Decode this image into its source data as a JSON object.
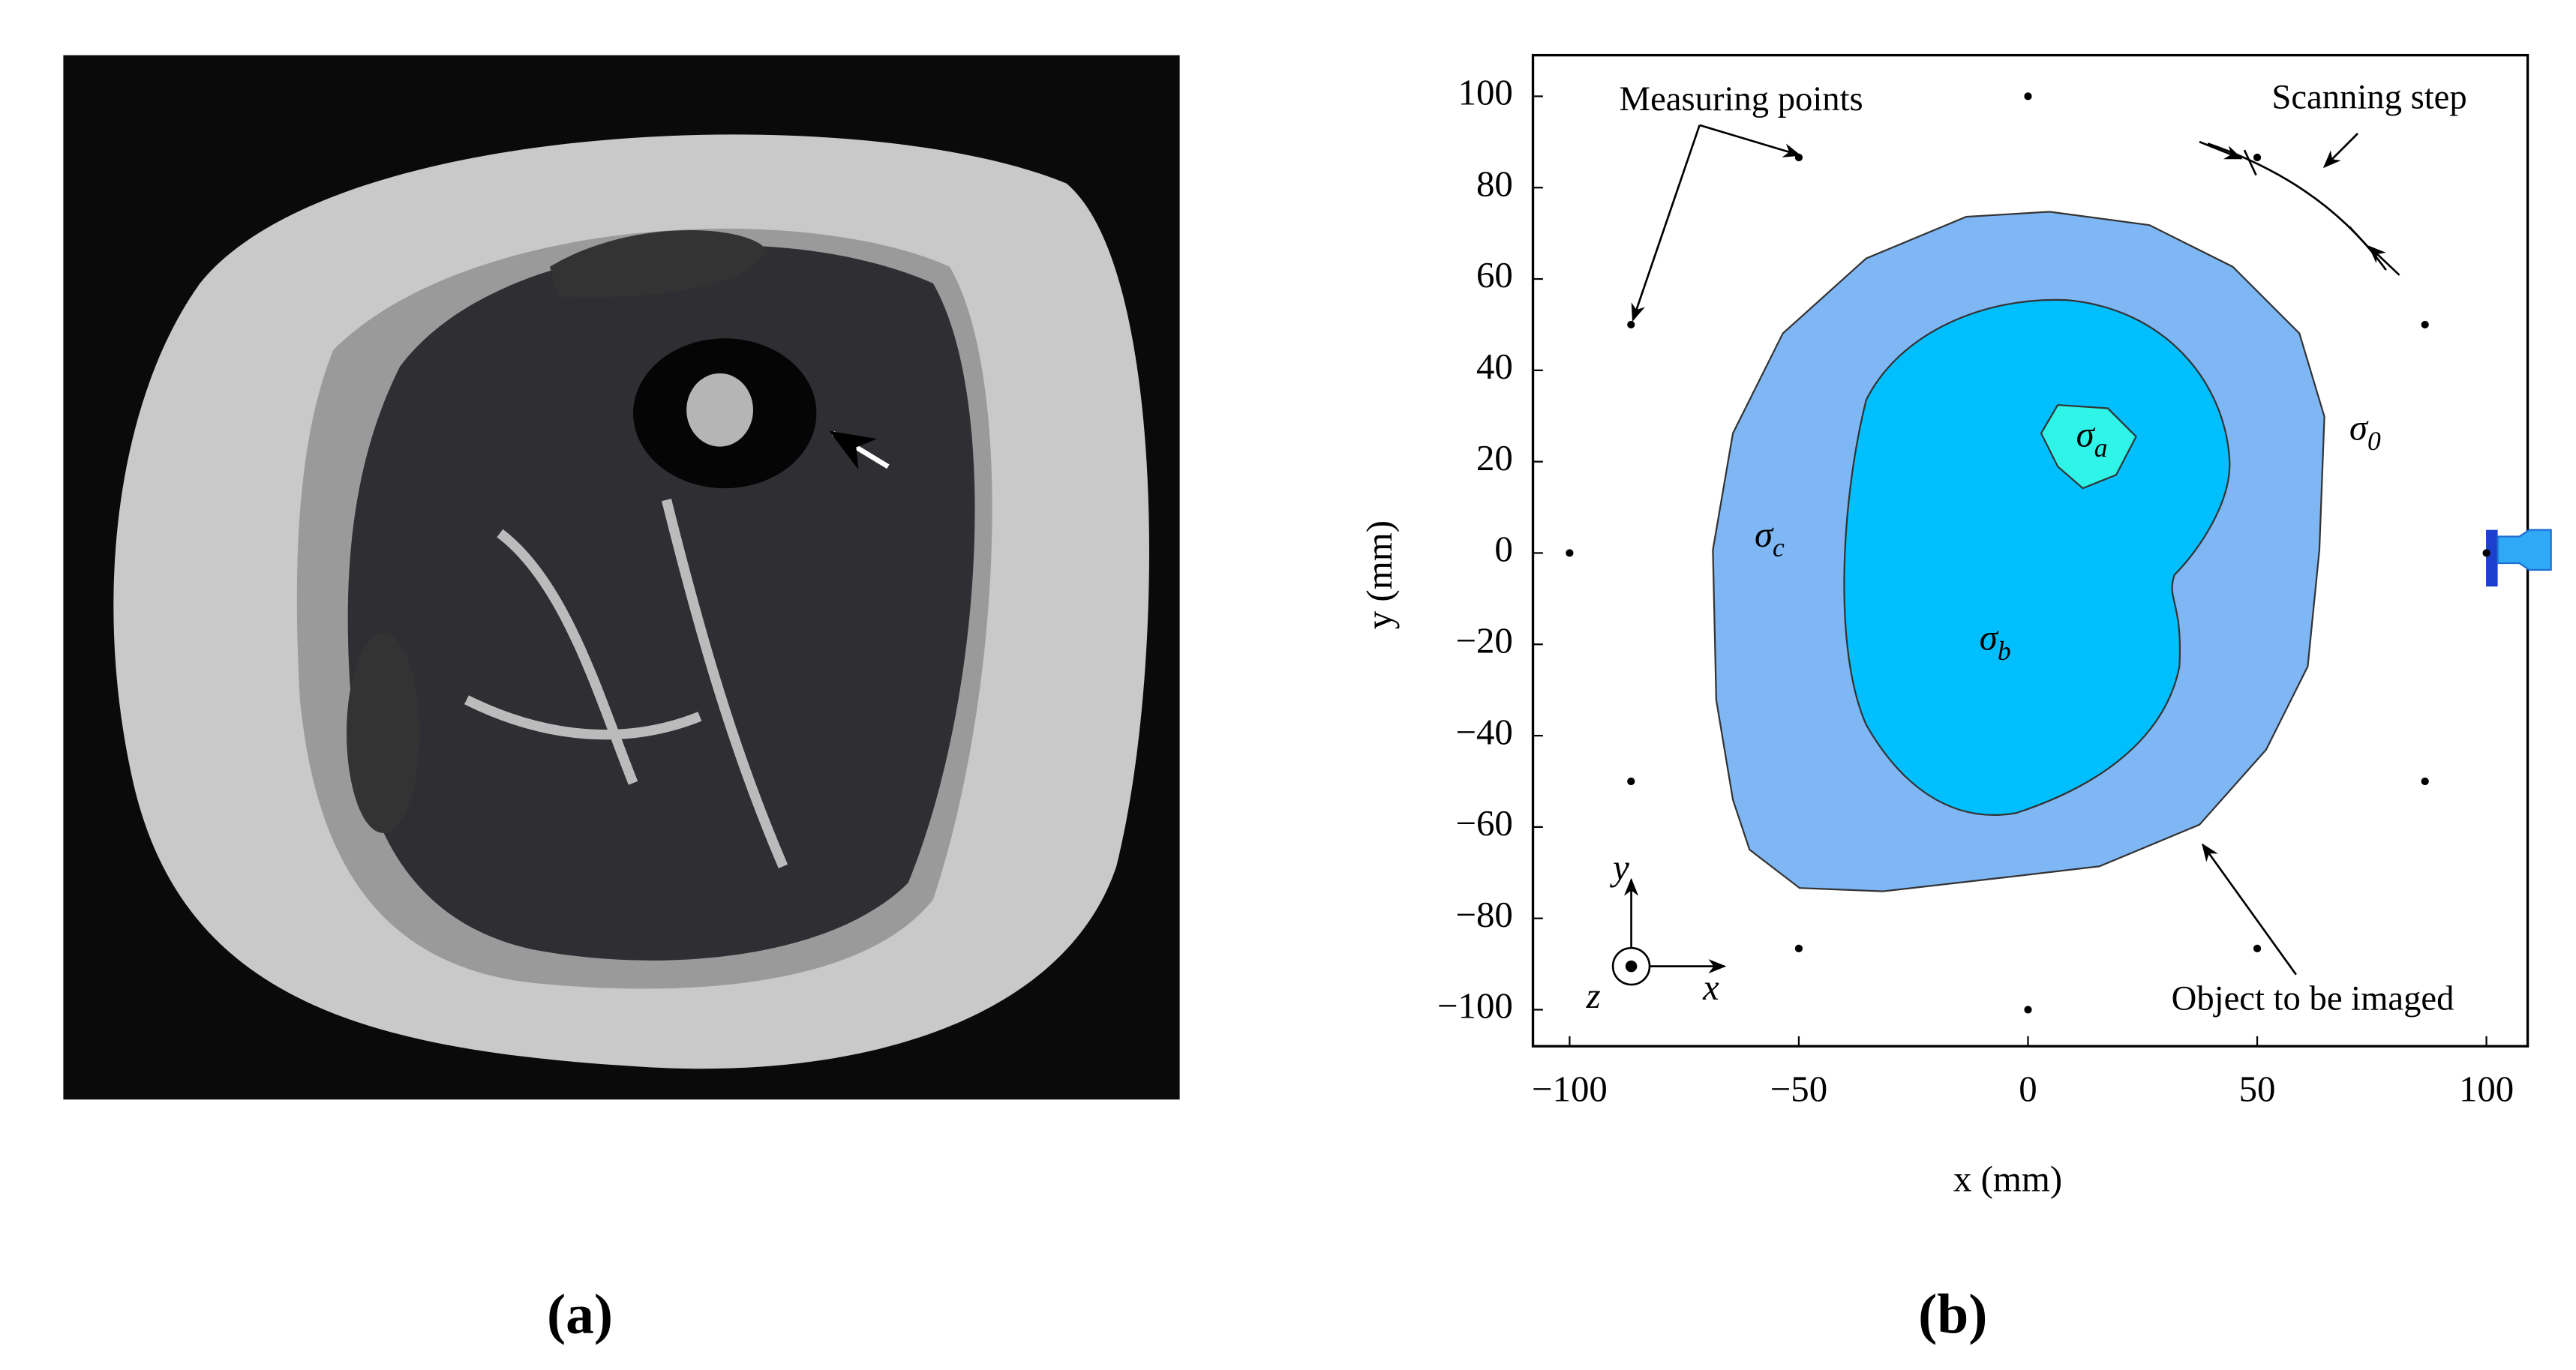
{
  "panels": [
    {
      "label": "(a)"
    },
    {
      "label": "(b)"
    }
  ],
  "chart_data": {
    "type": "scatter",
    "xlabel": "x (mm)",
    "ylabel": "y (mm)",
    "xlim": [
      -108,
      109
    ],
    "ylim": [
      -108,
      109
    ],
    "xticks": [
      {
        "value": -100,
        "label": "−100"
      },
      {
        "value": -50,
        "label": "−50"
      },
      0,
      50,
      100
    ],
    "yticks": [
      {
        "value": -100,
        "label": "−100"
      },
      {
        "value": -80,
        "label": "−80"
      },
      {
        "value": -60,
        "label": "−60"
      },
      {
        "value": -40,
        "label": "−40"
      },
      {
        "value": -20,
        "label": "−20"
      },
      0,
      20,
      40,
      60,
      80,
      100
    ],
    "series": [
      {
        "name": "Measuring points",
        "color": "#000000",
        "x": [
          100,
          86.6,
          50,
          0,
          -50,
          -86.6,
          -100,
          -86.6,
          -50,
          0,
          50,
          86.6
        ],
        "values": [
          0,
          50,
          86.6,
          100,
          86.6,
          50,
          0,
          -50,
          -86.6,
          -100,
          -86.6,
          -50
        ]
      }
    ],
    "annotations": [
      "Measuring points",
      "Scanning step",
      "Object to be imaged"
    ],
    "regions": [
      {
        "symbol": "σ",
        "subscript": "a"
      },
      {
        "symbol": "σ",
        "subscript": "b"
      },
      {
        "symbol": "σ",
        "subscript": "c"
      },
      {
        "symbol": "σ",
        "subscript": "0"
      }
    ],
    "axis_indicator": [
      "y",
      "x",
      "z"
    ]
  }
}
